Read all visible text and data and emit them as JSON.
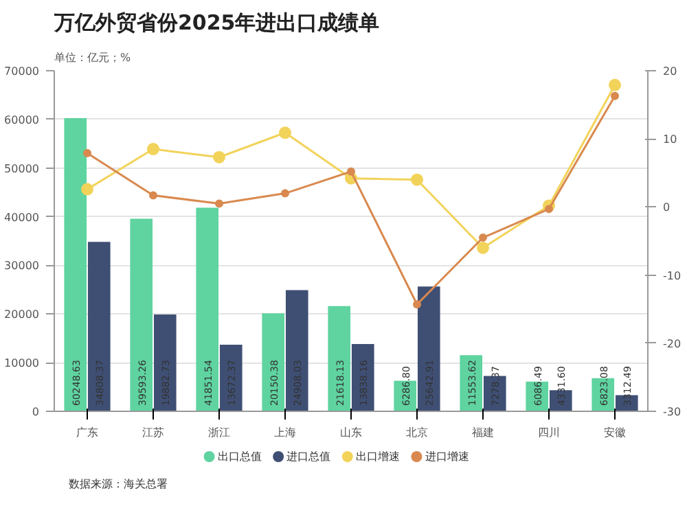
{
  "chart_data": {
    "type": "bar",
    "title": "万亿外贸省份2025年进出口成绩单",
    "subtitle": "单位：亿元；%",
    "categories": [
      "广东",
      "江苏",
      "浙江",
      "上海",
      "山东",
      "北京",
      "福建",
      "四川",
      "安徽"
    ],
    "series": [
      {
        "name": "出口总值",
        "color": "#5fd3a0",
        "values": [
          60248.63,
          39593.26,
          41851.54,
          20150.38,
          21618.13,
          6286.8,
          11553.62,
          6086.49,
          6823.08
        ],
        "value_labels": [
          "60248.63",
          "39593.26",
          "41851.54",
          "20150.38",
          "21618.13",
          "6286.80",
          "11553.62",
          "6086.49",
          "6823.08"
        ]
      },
      {
        "name": "进口总值",
        "color": "#3f4f74",
        "values": [
          34808.37,
          19882.73,
          13672.37,
          24908.03,
          13838.16,
          25642.91,
          7278.37,
          4331.6,
          3312.49
        ],
        "value_labels": [
          "34808.37",
          "19882.73",
          "13672.37",
          "24908.03",
          "13838.16",
          "25642.91",
          "7278.37",
          "4331.60",
          "3312.49"
        ]
      },
      {
        "name": "出口增速",
        "type": "line",
        "axis": "y2",
        "color": "#f2d35a",
        "values": [
          2.6,
          8.5,
          7.3,
          10.9,
          4.2,
          4.0,
          -6.0,
          0.2,
          17.9
        ]
      },
      {
        "name": "进口增速",
        "type": "line",
        "axis": "y2",
        "color": "#d9894f",
        "values": [
          7.9,
          1.7,
          0.5,
          2.0,
          5.2,
          -14.3,
          -4.5,
          -0.3,
          16.3
        ]
      }
    ],
    "ylim": [
      0,
      70000
    ],
    "yticks": [
      0,
      10000,
      20000,
      30000,
      40000,
      50000,
      60000,
      70000
    ],
    "y2lim": [
      -30,
      20
    ],
    "y2ticks": [
      -30,
      -20,
      -10,
      0,
      10,
      20
    ],
    "grid": "y",
    "legend": "bottom",
    "marker": "circle",
    "annotations": [
      "数据来源：海关总署"
    ]
  }
}
